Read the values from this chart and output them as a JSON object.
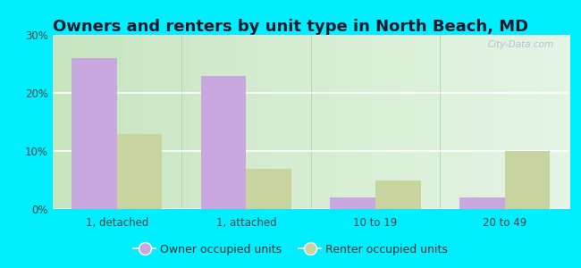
{
  "title": "Owners and renters by unit type in North Beach, MD",
  "categories": [
    "1, detached",
    "1, attached",
    "10 to 19",
    "20 to 49"
  ],
  "owner_values": [
    26,
    23,
    2,
    2
  ],
  "renter_values": [
    13,
    7,
    5,
    10
  ],
  "owner_color": "#c9a8e0",
  "renter_color": "#c8d4a0",
  "background_outer": "#00eeff",
  "ylim": [
    0,
    30
  ],
  "yticks": [
    0,
    10,
    20,
    30
  ],
  "bar_width": 0.35,
  "title_fontsize": 13,
  "legend_label_owner": "Owner occupied units",
  "legend_label_renter": "Renter occupied units",
  "watermark": "City-Data.com",
  "bg_color_topleft": "#c8e6c0",
  "bg_color_topright": "#e8f5e0",
  "bg_color_bottomleft": "#dff0d8",
  "bg_color_bottomright": "#f5faf0"
}
